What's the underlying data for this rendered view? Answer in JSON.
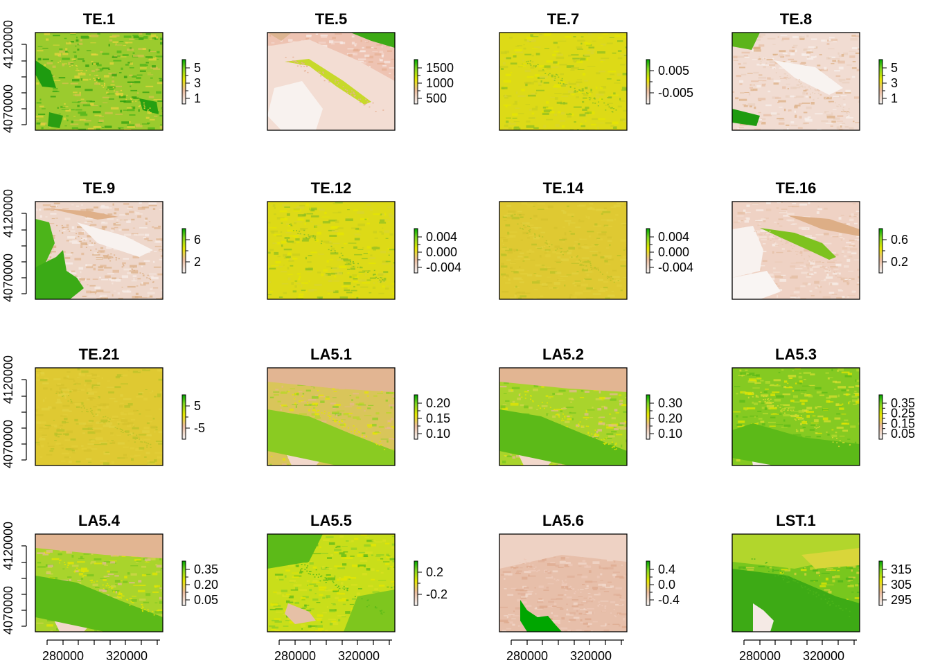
{
  "chart_data": {
    "type": "heatmap",
    "layout": "4x4 grid of raster maps with colour legends",
    "colors": {
      "low": "#F2F2F2",
      "mid_low": "#EABB9C",
      "mid": "#E6E600",
      "mid_high": "#7ED321",
      "high": "#00A600"
    },
    "shared_x_ticks": [
      "280000",
      "320000"
    ],
    "shared_y_ticks": [
      "4070000",
      "4120000"
    ],
    "panels": [
      {
        "title": "TE.1",
        "legend_ticks": [
          "5",
          "3",
          "1"
        ],
        "pattern": "green-dense"
      },
      {
        "title": "TE.5",
        "legend_ticks": [
          "1500",
          "1000",
          "500"
        ],
        "pattern": "pink-elevation"
      },
      {
        "title": "TE.7",
        "legend_ticks": [
          "0.005",
          "-0.005"
        ],
        "pattern": "yellow-flat"
      },
      {
        "title": "TE.8",
        "legend_ticks": [
          "5",
          "3",
          "1"
        ],
        "pattern": "pink-light"
      },
      {
        "title": "TE.9",
        "legend_ticks": [
          "6",
          "2"
        ],
        "pattern": "pink-green-water"
      },
      {
        "title": "TE.12",
        "legend_ticks": [
          "0.004",
          "0.000",
          "-0.004"
        ],
        "pattern": "yellow-flat"
      },
      {
        "title": "TE.14",
        "legend_ticks": [
          "0.004",
          "0.000",
          "-0.004"
        ],
        "pattern": "tan-flat"
      },
      {
        "title": "TE.16",
        "legend_ticks": [
          "0.6",
          "0.2"
        ],
        "pattern": "pink-ridge"
      },
      {
        "title": "TE.21",
        "legend_ticks": [
          "5",
          "-5"
        ],
        "pattern": "tan-flat"
      },
      {
        "title": "LA5.1",
        "legend_ticks": [
          "0.20",
          "0.15",
          "0.10"
        ],
        "pattern": "mixed-tan"
      },
      {
        "title": "LA5.2",
        "legend_ticks": [
          "0.30",
          "0.20",
          "0.10"
        ],
        "pattern": "mixed-green"
      },
      {
        "title": "LA5.3",
        "legend_ticks": [
          "0.35",
          "0.25",
          "0.15",
          "0.05"
        ],
        "pattern": "green-mixed"
      },
      {
        "title": "LA5.4",
        "legend_ticks": [
          "0.35",
          "0.20",
          "0.05"
        ],
        "pattern": "mixed-green"
      },
      {
        "title": "LA5.5",
        "legend_ticks": [
          "0.2",
          "-0.2"
        ],
        "pattern": "yellow-green"
      },
      {
        "title": "LA5.6",
        "legend_ticks": [
          "0.4",
          "0.0",
          "-0.4"
        ],
        "pattern": "pink-water"
      },
      {
        "title": "LST.1",
        "legend_ticks": [
          "315",
          "305",
          "295"
        ],
        "pattern": "green-heat"
      }
    ]
  }
}
